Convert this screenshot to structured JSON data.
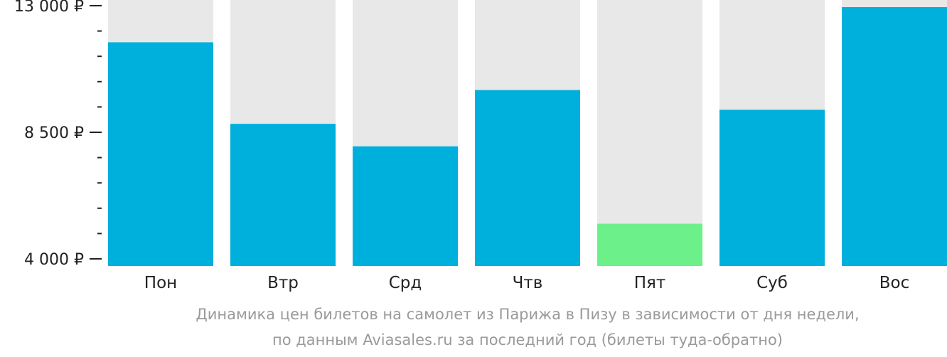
{
  "caption": {
    "line1": "Динамика цен билетов на самолет из Парижа в Пизу в зависимости от дня недели,",
    "line2": "по данным Aviasales.ru за последний год (билеты туда-обратно)"
  },
  "colors": {
    "bar": "#00b0dc",
    "bar_min": "#6cf08a",
    "track": "#e8e8e8",
    "axis": "#222222",
    "caption": "#9a9a9a"
  },
  "chart_data": {
    "type": "bar",
    "categories": [
      "Пон",
      "Втр",
      "Срд",
      "Чтв",
      "Пят",
      "Суб",
      "Вос"
    ],
    "values": [
      11700,
      8800,
      8000,
      10000,
      5250,
      9300,
      12950
    ],
    "highlight_index": 4,
    "ylim": [
      4000,
      13000
    ],
    "yticks": [
      4000,
      8500,
      13000
    ],
    "ytick_labels": [
      "4 000 ₽",
      "8 500 ₽",
      "13 000 ₽"
    ],
    "minor_tick_step": 900,
    "grid": false,
    "title": "",
    "xlabel": "",
    "ylabel": ""
  }
}
